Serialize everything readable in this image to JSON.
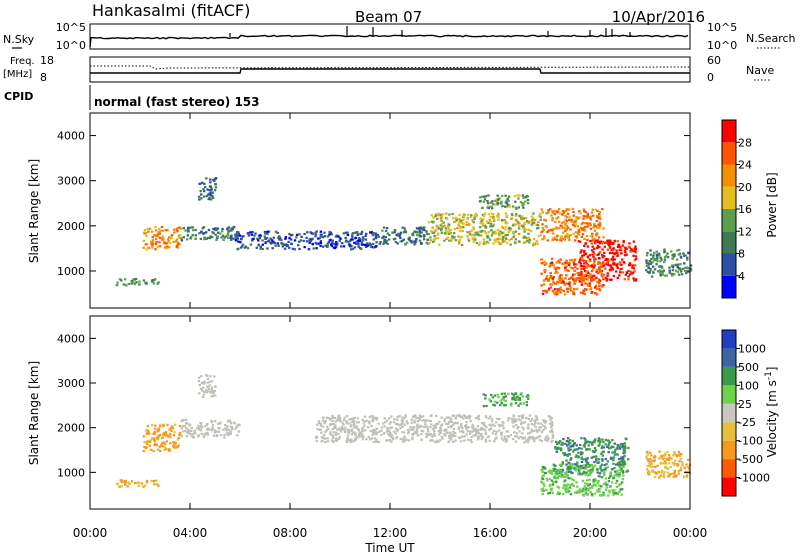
{
  "header": {
    "station": "Hankasalmi (fitACF)",
    "beam": "Beam 07",
    "date": "10/Apr/2016"
  },
  "status_panels": {
    "nsky_label": "N.Sky",
    "nsky_ticks": [
      "10^5",
      "10^0"
    ],
    "nsearch_label": "N.Search",
    "nsearch_ticks": [
      "10^5",
      "10^0"
    ],
    "freq_label": "Freq.",
    "freq_unit": "[MHz]",
    "freq_ticks": [
      "18",
      "8"
    ],
    "nave_label": "Nave",
    "nave_ticks": [
      "60",
      "0"
    ],
    "cpid_label": "CPID",
    "cpid_text": "normal (fast stereo) 153"
  },
  "colors": {
    "power_scale": [
      "#0000ff",
      "#2e4fa3",
      "#3f7a52",
      "#5aa050",
      "#e0c020",
      "#f39000",
      "#ff5500",
      "#ff0000"
    ],
    "velocity_scale": [
      "#ff0000",
      "#ff5a00",
      "#f59a1c",
      "#e6c03a",
      "#c8c8c0",
      "#6cd24a",
      "#3a9a48",
      "#3f64a6",
      "#2040c0"
    ],
    "ground_scatter": "#c0c0b8"
  },
  "chart_data": [
    {
      "type": "heatmap",
      "panel": "power",
      "ylabel": "Slant Range [km]",
      "ylim": [
        180,
        4500
      ],
      "yticks": [
        "1000",
        "2000",
        "3000",
        "4000"
      ],
      "colorbar": {
        "label": "Power [dB]",
        "range": [
          0,
          32
        ],
        "ticks": [
          "4",
          "8",
          "12",
          "16",
          "20",
          "24",
          "28"
        ]
      },
      "regions": [
        {
          "t": [
            2.1,
            3.6
          ],
          "r": [
            1500,
            2000
          ],
          "value": 22
        },
        {
          "t": [
            3.6,
            5.9
          ],
          "r": [
            1700,
            2000
          ],
          "value": 10
        },
        {
          "t": [
            4.3,
            5.0
          ],
          "r": [
            2600,
            3100
          ],
          "value": 8
        },
        {
          "t": [
            1.0,
            2.7
          ],
          "r": [
            700,
            850
          ],
          "value": 12
        },
        {
          "t": [
            5.8,
            11.5
          ],
          "r": [
            1500,
            1900
          ],
          "value": 6
        },
        {
          "t": [
            11.5,
            13.5
          ],
          "r": [
            1600,
            2000
          ],
          "value": 9
        },
        {
          "t": [
            13.5,
            18.0
          ],
          "r": [
            1600,
            2300
          ],
          "value": 17
        },
        {
          "t": [
            15.5,
            17.5
          ],
          "r": [
            2400,
            2700
          ],
          "value": 13
        },
        {
          "t": [
            18.0,
            20.5
          ],
          "r": [
            1700,
            2400
          ],
          "value": 23
        },
        {
          "t": [
            19.5,
            21.8
          ],
          "r": [
            800,
            1700
          ],
          "value": 30
        },
        {
          "t": [
            18.0,
            20.5
          ],
          "r": [
            500,
            1300
          ],
          "value": 25
        },
        {
          "t": [
            22.2,
            24.0
          ],
          "r": [
            900,
            1500
          ],
          "value": 11
        }
      ]
    },
    {
      "type": "heatmap",
      "panel": "velocity",
      "ylabel": "Slant Range [km]",
      "ylim": [
        180,
        4500
      ],
      "yticks": [
        "1000",
        "2000",
        "3000",
        "4000"
      ],
      "colorbar": {
        "label": "Velocity [m s-1]",
        "ticks": [
          "1000",
          "500",
          "100",
          "25",
          "-25",
          "-100",
          "-500",
          "-1000"
        ]
      },
      "regions": [
        {
          "t": [
            2.1,
            3.6
          ],
          "r": [
            1500,
            2100
          ],
          "value": -150
        },
        {
          "t": [
            3.6,
            6.0
          ],
          "r": [
            1800,
            2200
          ],
          "value": 0
        },
        {
          "t": [
            4.3,
            5.0
          ],
          "r": [
            2700,
            3200
          ],
          "value": 0
        },
        {
          "t": [
            1.0,
            2.7
          ],
          "r": [
            700,
            850
          ],
          "value": -120
        },
        {
          "t": [
            9.0,
            18.5
          ],
          "r": [
            1700,
            2300
          ],
          "value": 0
        },
        {
          "t": [
            15.7,
            17.5
          ],
          "r": [
            2500,
            2800
          ],
          "value": 150
        },
        {
          "t": [
            18.5,
            21.5
          ],
          "r": [
            1000,
            1800
          ],
          "value": 400
        },
        {
          "t": [
            18.0,
            21.3
          ],
          "r": [
            500,
            1200
          ],
          "value": 80
        },
        {
          "t": [
            22.2,
            24.0
          ],
          "r": [
            900,
            1500
          ],
          "value": -100
        }
      ],
      "xlabel": "Time UT",
      "xticks": [
        "00:00",
        "04:00",
        "08:00",
        "12:00",
        "16:00",
        "20:00",
        "00:00"
      ],
      "xlim": [
        0,
        24
      ]
    }
  ]
}
